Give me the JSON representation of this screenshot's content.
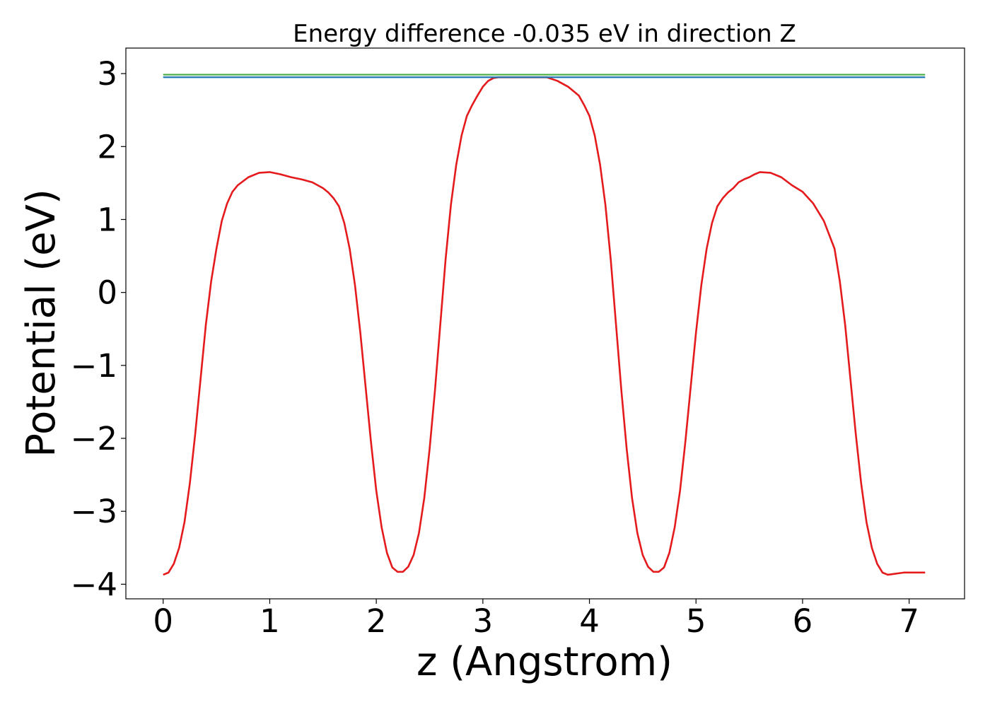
{
  "chart_data": {
    "type": "line",
    "title": "Energy difference -0.035 eV in direction Z",
    "xlabel": "z (Angstrom)",
    "ylabel": "Potential (eV)",
    "xlim": [
      -0.35,
      7.52
    ],
    "ylim": [
      -4.2,
      3.35
    ],
    "x_ticks": [
      0,
      1,
      2,
      3,
      4,
      5,
      6,
      7
    ],
    "x_tick_labels": [
      "0",
      "1",
      "2",
      "3",
      "4",
      "5",
      "6",
      "7"
    ],
    "y_ticks": [
      -4,
      -3,
      -2,
      -1,
      0,
      1,
      2,
      3
    ],
    "y_tick_labels": [
      "−4",
      "−3",
      "−2",
      "−1",
      "0",
      "1",
      "2",
      "3"
    ],
    "grid": false,
    "colors": {
      "potential": "#e41a1c",
      "level_a": "#4daf4a",
      "level_b": "#1f77b4"
    },
    "series": [
      {
        "kind": "curve",
        "color_key": "potential",
        "x": [
          0.0,
          0.05,
          0.1,
          0.15,
          0.2,
          0.25,
          0.3,
          0.35,
          0.4,
          0.45,
          0.5,
          0.55,
          0.6,
          0.65,
          0.7,
          0.8,
          0.9,
          1.0,
          1.1,
          1.2,
          1.3,
          1.4,
          1.5,
          1.55,
          1.6,
          1.65,
          1.7,
          1.75,
          1.8,
          1.85,
          1.9,
          1.95,
          2.0,
          2.05,
          2.1,
          2.15,
          2.2,
          2.25,
          2.3,
          2.35,
          2.4,
          2.45,
          2.5,
          2.55,
          2.6,
          2.65,
          2.7,
          2.75,
          2.8,
          2.85,
          2.9,
          2.95,
          3.0,
          3.05,
          3.1,
          3.15,
          3.2,
          3.3,
          3.4,
          3.5,
          3.6,
          3.7,
          3.8,
          3.9,
          3.95,
          4.0,
          4.05,
          4.1,
          4.15,
          4.2,
          4.25,
          4.3,
          4.35,
          4.4,
          4.45,
          4.5,
          4.55,
          4.6,
          4.65,
          4.7,
          4.75,
          4.8,
          4.85,
          4.9,
          4.95,
          5.0,
          5.05,
          5.1,
          5.15,
          5.2,
          5.25,
          5.3,
          5.35,
          5.4,
          5.45,
          5.5,
          5.55,
          5.6,
          5.7,
          5.8,
          5.9,
          6.0,
          6.1,
          6.2,
          6.3,
          6.35,
          6.4,
          6.45,
          6.5,
          6.55,
          6.6,
          6.65,
          6.7,
          6.75,
          6.8,
          6.85,
          6.9,
          6.95,
          7.0,
          7.05,
          7.1,
          7.15
        ],
        "y": [
          -3.87,
          -3.84,
          -3.72,
          -3.5,
          -3.15,
          -2.62,
          -1.95,
          -1.2,
          -0.45,
          0.15,
          0.6,
          0.98,
          1.22,
          1.38,
          1.47,
          1.58,
          1.64,
          1.65,
          1.62,
          1.58,
          1.55,
          1.51,
          1.43,
          1.37,
          1.29,
          1.18,
          0.95,
          0.6,
          0.1,
          -0.55,
          -1.3,
          -2.05,
          -2.72,
          -3.22,
          -3.57,
          -3.77,
          -3.83,
          -3.83,
          -3.76,
          -3.6,
          -3.3,
          -2.82,
          -2.15,
          -1.35,
          -0.45,
          0.45,
          1.2,
          1.75,
          2.15,
          2.42,
          2.57,
          2.7,
          2.82,
          2.9,
          2.94,
          2.95,
          2.95,
          2.95,
          2.95,
          2.95,
          2.95,
          2.9,
          2.82,
          2.7,
          2.57,
          2.42,
          2.15,
          1.75,
          1.2,
          0.45,
          -0.45,
          -1.35,
          -2.15,
          -2.82,
          -3.3,
          -3.6,
          -3.76,
          -3.83,
          -3.83,
          -3.77,
          -3.57,
          -3.22,
          -2.72,
          -2.05,
          -1.3,
          -0.55,
          0.1,
          0.6,
          0.95,
          1.18,
          1.29,
          1.37,
          1.43,
          1.51,
          1.55,
          1.58,
          1.62,
          1.65,
          1.64,
          1.58,
          1.47,
          1.38,
          1.22,
          0.98,
          0.6,
          0.15,
          -0.45,
          -1.2,
          -1.95,
          -2.62,
          -3.15,
          -3.5,
          -3.72,
          -3.84,
          -3.87,
          -3.86,
          -3.85,
          -3.84,
          -3.84,
          -3.84,
          -3.84,
          -3.84
        ]
      },
      {
        "kind": "level",
        "color_key": "level_a",
        "x": [
          0.0,
          7.15
        ],
        "y": [
          2.985,
          2.985
        ]
      },
      {
        "kind": "level",
        "color_key": "level_b",
        "x": [
          0.0,
          7.15
        ],
        "y": [
          2.95,
          2.95
        ]
      }
    ]
  }
}
